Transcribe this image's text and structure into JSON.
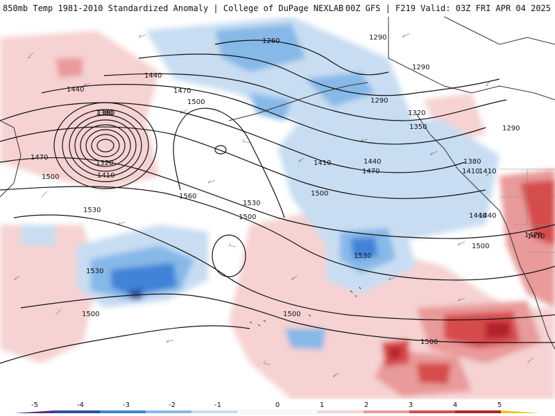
{
  "header": {
    "title_left": "850mb Temp 1981-2010 Standardized Anomaly | College of DuPage NEXLAB",
    "title_right": "00Z GFS | F219 Valid: 03Z FRI APR 04 2025"
  },
  "colors": {
    "neg5": "#5a2a8a",
    "neg4": "#2c4f9e",
    "neg3": "#3f83d8",
    "neg2": "#86b8e8",
    "neg1": "#c8ddf2",
    "zero": "#ffffff",
    "pos1": "#f6d2d2",
    "pos2": "#e99a9a",
    "pos3": "#d64c4c",
    "pos4": "#b3242a",
    "pos5": "#7c0e14",
    "pos6": "#f0c419"
  },
  "colorbar": {
    "ticks": [
      "-5",
      "-4",
      "-3",
      "-2",
      "-1",
      "0",
      "1",
      "2",
      "3",
      "4",
      "5"
    ]
  },
  "contour_labels": [
    {
      "text": "1260"
    },
    {
      "text": "1290"
    },
    {
      "text": "1290"
    },
    {
      "text": "1290"
    },
    {
      "text": "1290"
    },
    {
      "text": "1320"
    },
    {
      "text": "1350"
    },
    {
      "text": "1380"
    },
    {
      "text": "1410"
    },
    {
      "text": "1440"
    },
    {
      "text": "1440"
    },
    {
      "text": "1470"
    },
    {
      "text": "1500"
    },
    {
      "text": "1440"
    },
    {
      "text": "1470"
    },
    {
      "text": "1380"
    },
    {
      "text": "1320"
    },
    {
      "text": "1410"
    },
    {
      "text": "1470"
    },
    {
      "text": "1500"
    },
    {
      "text": "1530"
    },
    {
      "text": "1560"
    },
    {
      "text": "1530"
    },
    {
      "text": "1500"
    },
    {
      "text": "1530"
    },
    {
      "text": "1500"
    },
    {
      "text": "1410"
    },
    {
      "text": "1440"
    },
    {
      "text": "1470"
    },
    {
      "text": "1500"
    },
    {
      "text": "1500"
    },
    {
      "text": "1530"
    },
    {
      "text": "1500"
    },
    {
      "text": "1500"
    },
    {
      "text": "1380"
    },
    {
      "text": "1410"
    },
    {
      "text": "1440"
    },
    {
      "text": "1470"
    }
  ]
}
